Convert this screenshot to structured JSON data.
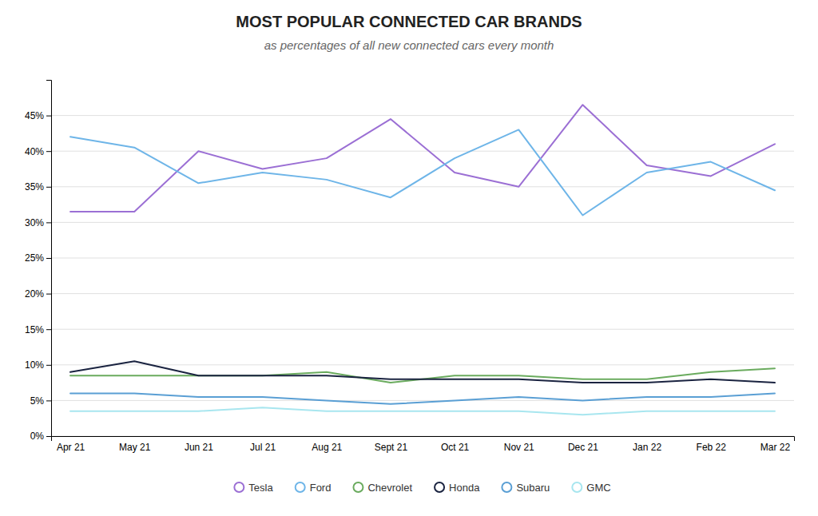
{
  "chart_data": {
    "type": "line",
    "title": "MOST POPULAR CONNECTED CAR BRANDS",
    "subtitle": "as percentages of all new connected cars every month",
    "categories": [
      "Apr 21",
      "May 21",
      "Jun 21",
      "Jul 21",
      "Aug 21",
      "Sept 21",
      "Oct 21",
      "Nov 21",
      "Dec 21",
      "Jan 22",
      "Feb 22",
      "Mar 22"
    ],
    "series": [
      {
        "name": "Tesla",
        "color": "#9b6fd4",
        "values": [
          31.5,
          31.5,
          40.0,
          37.5,
          39.0,
          44.5,
          37.0,
          35.0,
          46.5,
          38.0,
          36.5,
          41.0
        ]
      },
      {
        "name": "Ford",
        "color": "#6eb5e8",
        "values": [
          42.0,
          40.5,
          35.5,
          37.0,
          36.0,
          33.5,
          39.0,
          43.0,
          31.0,
          37.0,
          38.5,
          34.5
        ]
      },
      {
        "name": "Chevrolet",
        "color": "#6aab5e",
        "values": [
          8.5,
          8.5,
          8.5,
          8.5,
          9.0,
          7.5,
          8.5,
          8.5,
          8.0,
          8.0,
          9.0,
          9.5
        ]
      },
      {
        "name": "Honda",
        "color": "#1a2340",
        "values": [
          9.0,
          10.5,
          8.5,
          8.5,
          8.5,
          8.0,
          8.0,
          8.0,
          7.5,
          7.5,
          8.0,
          7.5
        ]
      },
      {
        "name": "Subaru",
        "color": "#5a9fd4",
        "values": [
          6.0,
          6.0,
          5.5,
          5.5,
          5.0,
          4.5,
          5.0,
          5.5,
          5.0,
          5.5,
          5.5,
          6.0
        ]
      },
      {
        "name": "GMC",
        "color": "#a8e6ef",
        "values": [
          3.5,
          3.5,
          3.5,
          4.0,
          3.5,
          3.5,
          3.5,
          3.5,
          3.0,
          3.5,
          3.5,
          3.5
        ]
      }
    ],
    "ylim": [
      0,
      50
    ],
    "yticks": [
      {
        "value": 0,
        "label": "0%"
      },
      {
        "value": 5,
        "label": "5%"
      },
      {
        "value": 10,
        "label": "10%"
      },
      {
        "value": 15,
        "label": "15%"
      },
      {
        "value": 20,
        "label": "20%"
      },
      {
        "value": 25,
        "label": "25%"
      },
      {
        "value": 30,
        "label": "30%"
      },
      {
        "value": 35,
        "label": "35%"
      },
      {
        "value": 40,
        "label": "40%"
      },
      {
        "value": 45,
        "label": "45%"
      }
    ],
    "grid": true,
    "legend": "bottom"
  }
}
